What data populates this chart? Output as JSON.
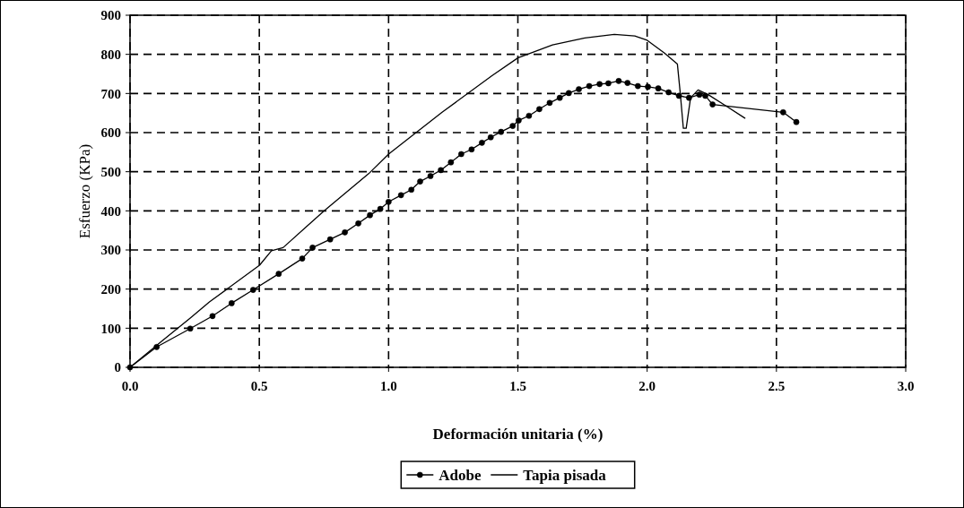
{
  "chart_data": {
    "type": "line",
    "xlabel": "Deformación unitaria (%)",
    "ylabel": "Esfuerzo (KPa)",
    "xlim": [
      0,
      3
    ],
    "ylim": [
      0,
      900
    ],
    "xticks": [
      {
        "value": 0,
        "label": "0.0"
      },
      {
        "value": 0.5,
        "label": "0.5"
      },
      {
        "value": 1,
        "label": "1.0"
      },
      {
        "value": 1.5,
        "label": "1.5"
      },
      {
        "value": 2,
        "label": "2.0"
      },
      {
        "value": 2.5,
        "label": "2.5"
      },
      {
        "value": 3,
        "label": "3.0"
      }
    ],
    "yticks": [
      0,
      100,
      200,
      300,
      400,
      500,
      600,
      700,
      800,
      900
    ],
    "grid": true,
    "legend": "bottom",
    "series": [
      {
        "name": "Adobe",
        "color": "#000000",
        "marker": "circle",
        "x": [
          0,
          0.103,
          0.233,
          0.319,
          0.393,
          0.476,
          0.575,
          0.666,
          0.706,
          0.774,
          0.831,
          0.883,
          0.928,
          0.968,
          1.0,
          1.048,
          1.088,
          1.122,
          1.162,
          1.202,
          1.241,
          1.281,
          1.321,
          1.361,
          1.395,
          1.435,
          1.48,
          1.503,
          1.543,
          1.583,
          1.623,
          1.662,
          1.697,
          1.736,
          1.776,
          1.816,
          1.85,
          1.89,
          1.924,
          1.964,
          2.003,
          2.043,
          2.083,
          2.123,
          2.162,
          2.202,
          2.225,
          2.253,
          2.526,
          2.577
        ],
        "values": [
          0,
          52,
          99,
          131,
          164,
          198,
          239,
          278,
          306,
          327,
          345,
          368,
          389,
          405,
          423,
          440,
          454,
          475,
          489,
          504,
          524,
          545,
          557,
          574,
          588,
          602,
          617,
          631,
          643,
          660,
          676,
          689,
          701,
          711,
          719,
          724,
          726,
          732,
          727,
          719,
          717,
          713,
          703,
          694,
          689,
          697,
          694,
          672,
          652,
          627
        ]
      },
      {
        "name": "Tapia pisada",
        "color": "#000000",
        "marker": "none",
        "x": [
          0,
          0.125,
          0.233,
          0.307,
          0.501,
          0.547,
          0.592,
          0.752,
          0.923,
          1.0,
          1.207,
          1.401,
          1.5,
          1.634,
          1.759,
          1.873,
          1.952,
          2.0,
          2.066,
          2.117,
          2.128,
          2.14,
          2.151,
          2.168,
          2.197,
          2.236,
          2.305,
          2.378
        ],
        "values": [
          0,
          68,
          126,
          167,
          261,
          298,
          306,
          401,
          495,
          545,
          652,
          746,
          791,
          824,
          842,
          851,
          847,
          836,
          804,
          775,
          701,
          611,
          611,
          689,
          709,
          697,
          668,
          637
        ]
      }
    ]
  }
}
